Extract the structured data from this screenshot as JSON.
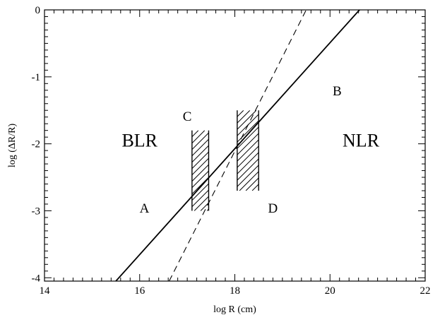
{
  "chart_data": {
    "type": "line",
    "xlabel": "log R (cm)",
    "ylabel": "log (ΔR/R)",
    "xlim": [
      14,
      22
    ],
    "ylim": [
      -4.05,
      0
    ],
    "x_ticks": [
      {
        "value": 14,
        "label": "14"
      },
      {
        "value": 16,
        "label": "16"
      },
      {
        "value": 18,
        "label": "18"
      },
      {
        "value": 20,
        "label": "20"
      },
      {
        "value": 22,
        "label": "22"
      }
    ],
    "y_ticks": [
      {
        "value": 0,
        "label": "0"
      },
      {
        "value": -1,
        "label": "-1"
      },
      {
        "value": -2,
        "label": "-2"
      },
      {
        "value": -3,
        "label": "-3"
      },
      {
        "value": -4,
        "label": "-4"
      }
    ],
    "grid": false,
    "series": [
      {
        "style": "solid",
        "points": [
          [
            15.5,
            -4.05
          ],
          [
            20.62,
            0
          ]
        ]
      },
      {
        "style": "dashed",
        "points": [
          [
            16.62,
            -4.05
          ],
          [
            19.5,
            0
          ]
        ]
      }
    ],
    "hatched_regions": [
      {
        "x": [
          17.1,
          17.45
        ],
        "y": [
          -3.0,
          -1.8
        ]
      },
      {
        "x": [
          18.05,
          18.5
        ],
        "y": [
          -2.7,
          -1.5
        ]
      }
    ],
    "annotations": [
      {
        "text": "BLR",
        "x": 16.0,
        "y": -1.95,
        "kind": "region"
      },
      {
        "text": "NLR",
        "x": 20.65,
        "y": -1.95,
        "kind": "region"
      },
      {
        "text": "A",
        "x": 16.1,
        "y": -2.97,
        "kind": "point"
      },
      {
        "text": "B",
        "x": 20.15,
        "y": -1.22,
        "kind": "point"
      },
      {
        "text": "C",
        "x": 17.0,
        "y": -1.6,
        "kind": "point"
      },
      {
        "text": "D",
        "x": 18.8,
        "y": -2.97,
        "kind": "point"
      }
    ]
  }
}
